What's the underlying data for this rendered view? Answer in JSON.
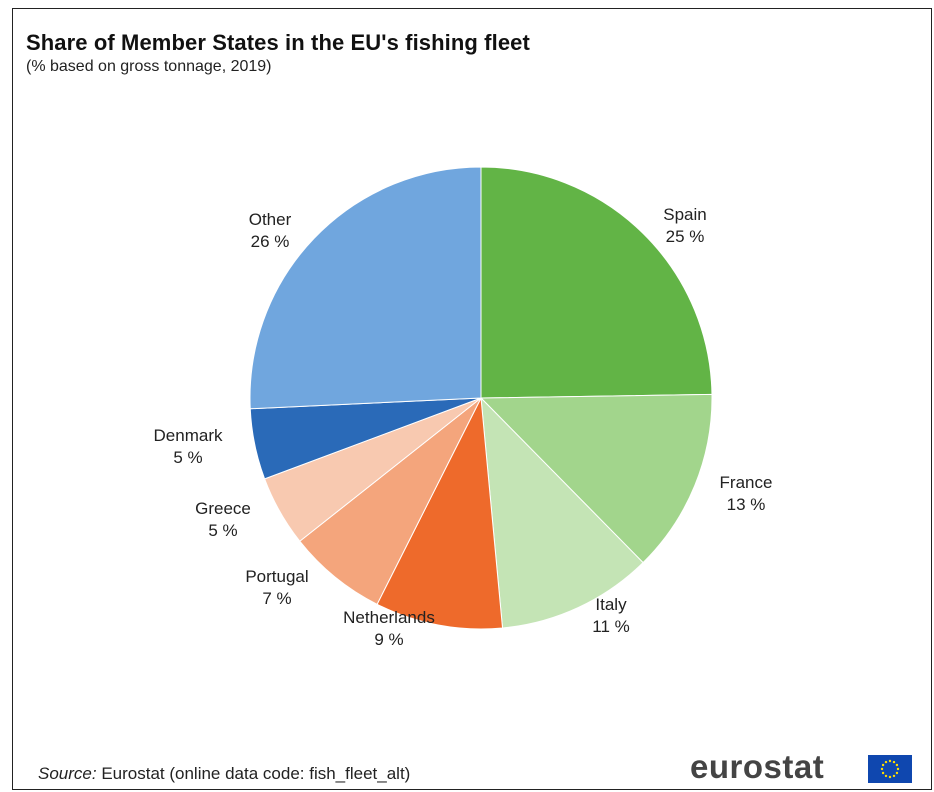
{
  "title": "Share of Member States in the EU's fishing fleet",
  "subtitle": "(% based on gross tonnage, 2019)",
  "source": {
    "prefix": "Source:",
    "text": " Eurostat (online data code: fish_fleet_alt)"
  },
  "logo": {
    "text": "eurostat",
    "flag": "eu-flag-icon"
  },
  "colors": {
    "Spain": "#62b446",
    "France": "#a2d58c",
    "Italy": "#c4e4b5",
    "Netherlands": "#ee6a2b",
    "Portugal": "#f4a57c",
    "Greece": "#f8c9b0",
    "Denmark": "#2a6ab8",
    "Other": "#70a6de"
  },
  "chart_data": {
    "type": "pie",
    "slices": [
      {
        "label": "Spain",
        "value": 25,
        "value_label": "25 %"
      },
      {
        "label": "France",
        "value": 13,
        "value_label": "13 %"
      },
      {
        "label": "Italy",
        "value": 11,
        "value_label": "11 %"
      },
      {
        "label": "Netherlands",
        "value": 9,
        "value_label": "9 %"
      },
      {
        "label": "Portugal",
        "value": 7,
        "value_label": "7 %"
      },
      {
        "label": "Greece",
        "value": 5,
        "value_label": "5 %"
      },
      {
        "label": "Denmark",
        "value": 5,
        "value_label": "5 %"
      },
      {
        "label": "Other",
        "value": 26,
        "value_label": "26 %"
      }
    ],
    "start": "12 o'clock",
    "direction": "clockwise",
    "legend": "none",
    "labels": "outside slices"
  }
}
